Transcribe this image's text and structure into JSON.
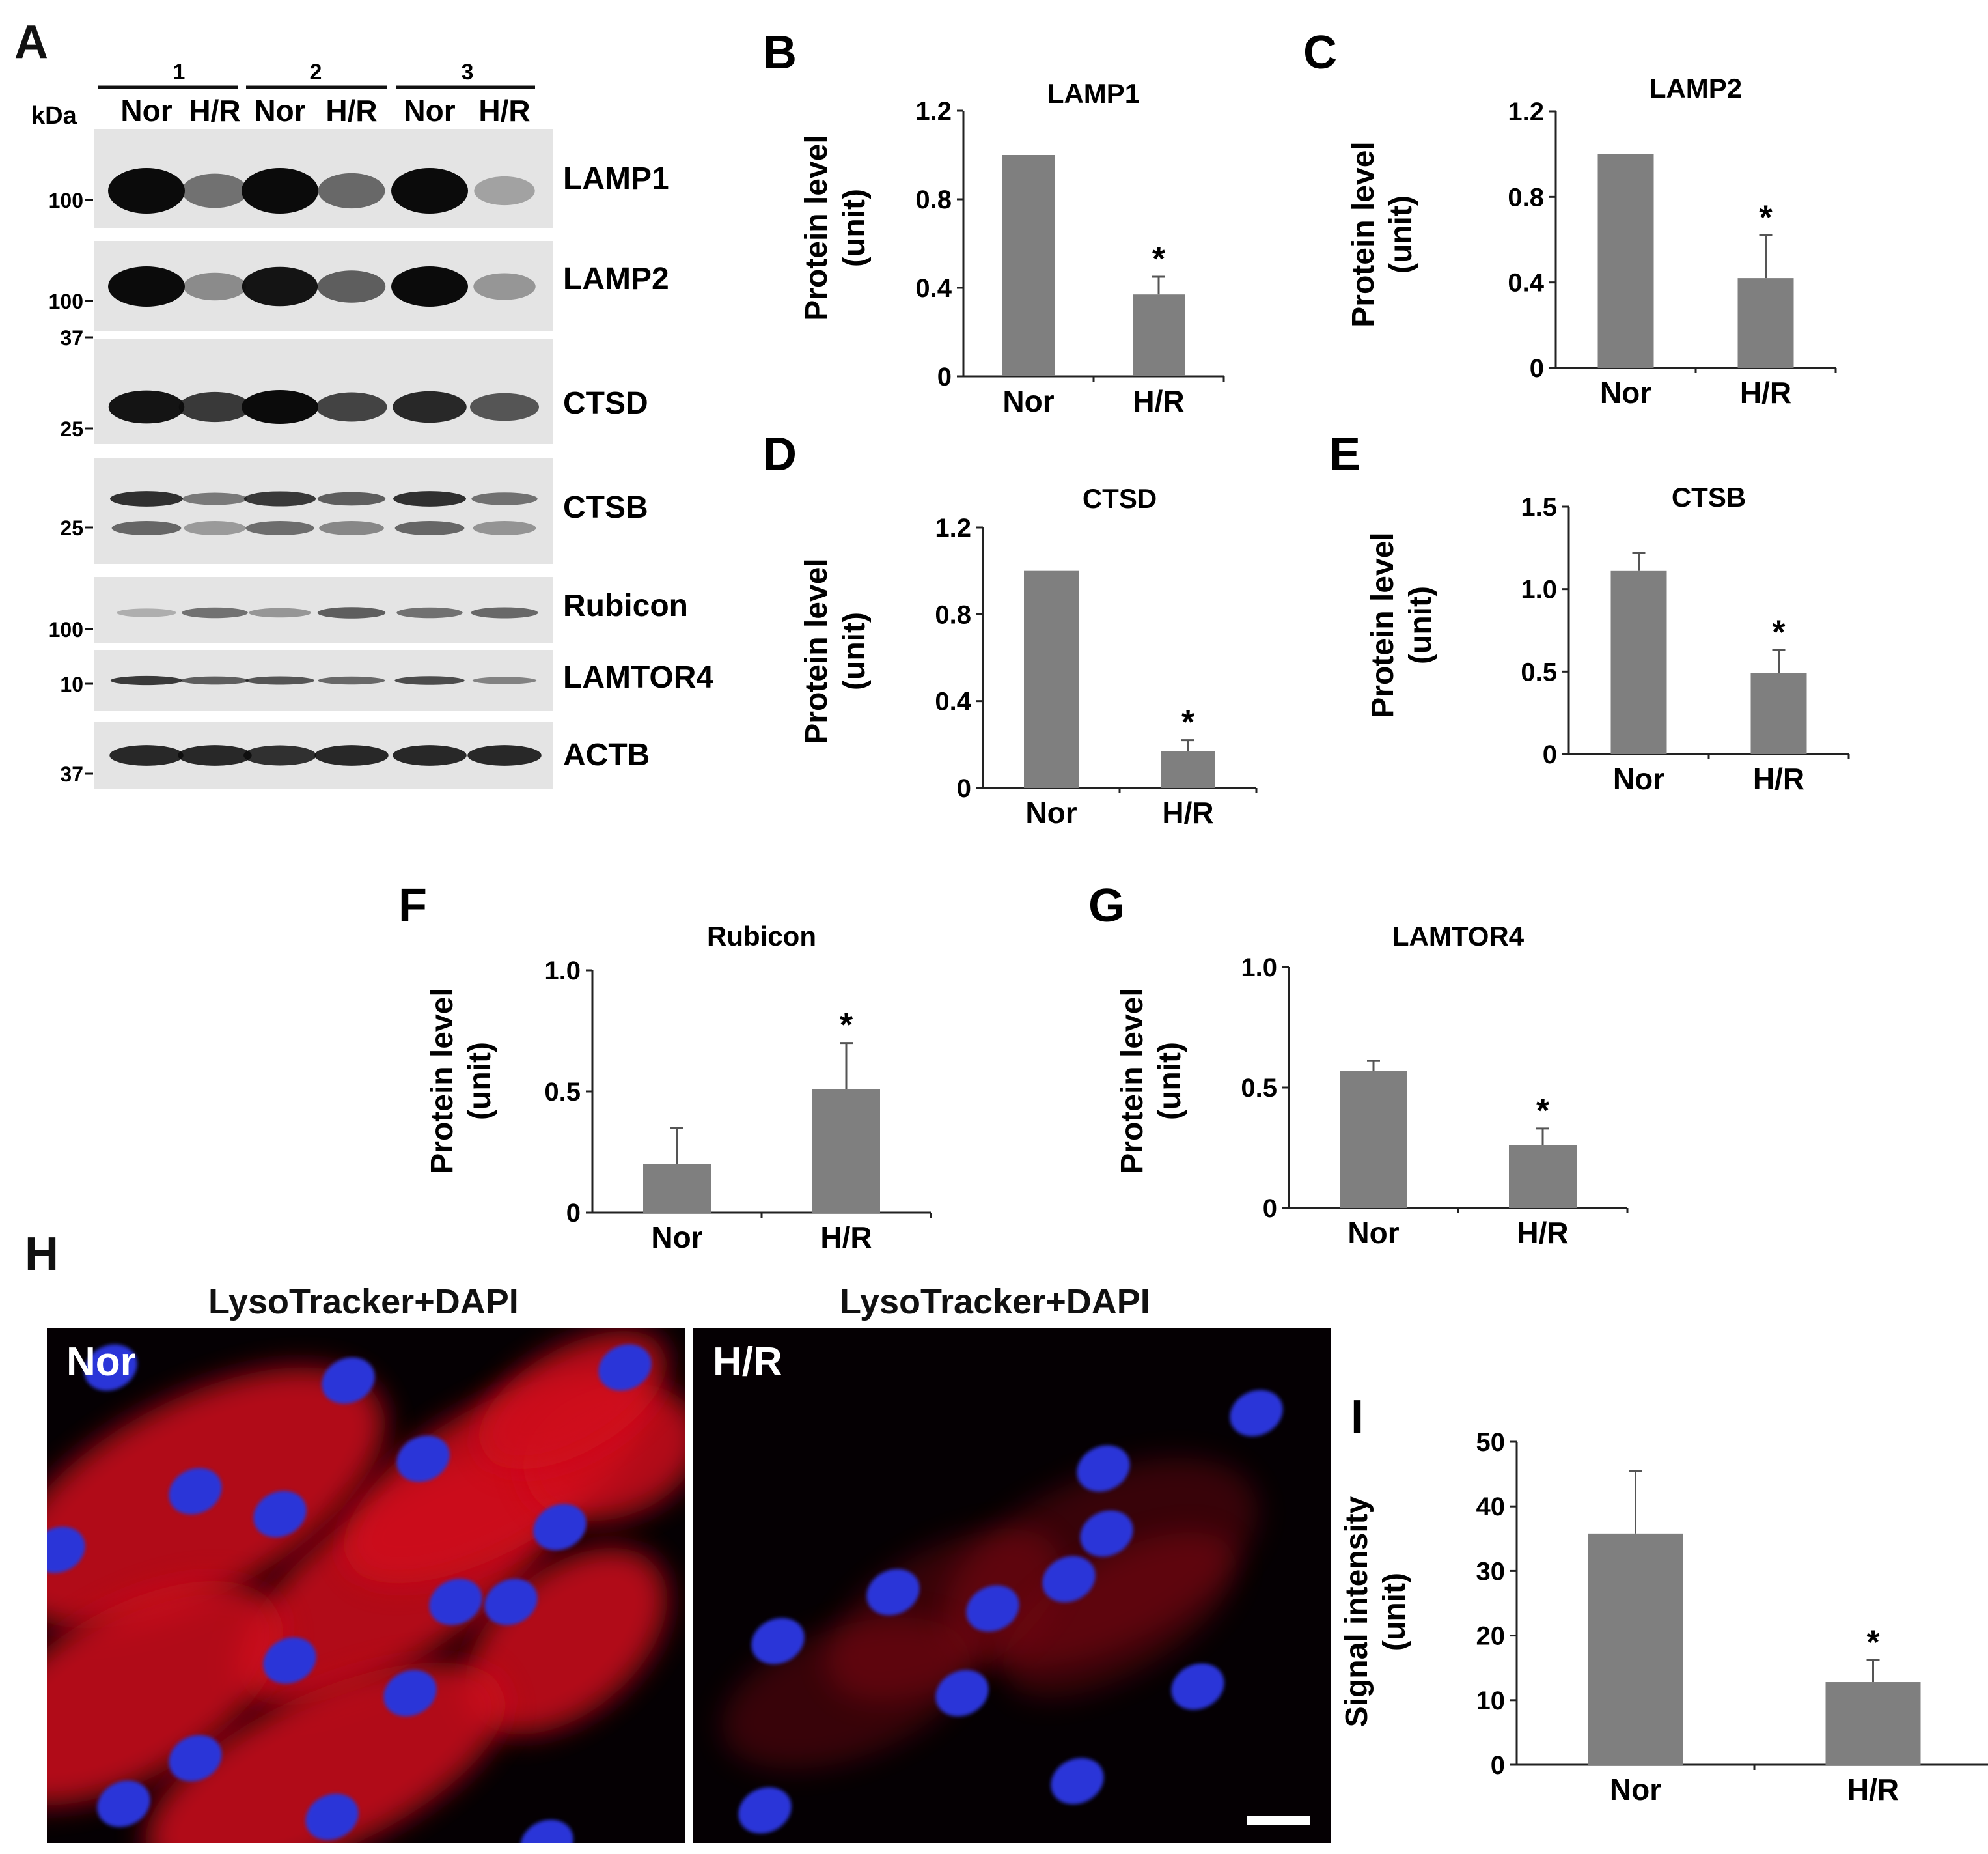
{
  "western_blot": {
    "panel": "A",
    "kda_label": "kDa",
    "group_labels": [
      "1",
      "2",
      "3"
    ],
    "lane_labels": [
      "Nor",
      "H/R",
      "Nor",
      "H/R",
      "Nor",
      "H/R"
    ],
    "rows": [
      {
        "protein": "LAMP1",
        "markers": [
          "100"
        ],
        "intensity": [
          1.0,
          0.45,
          1.0,
          0.5,
          1.0,
          0.18
        ]
      },
      {
        "protein": "LAMP2",
        "markers": [
          "100",
          "37"
        ],
        "intensity": [
          1.0,
          0.3,
          0.95,
          0.55,
          1.0,
          0.25
        ]
      },
      {
        "protein": "CTSD",
        "markers": [
          "25",
          "37"
        ],
        "intensity": [
          0.95,
          0.75,
          1.0,
          0.7,
          0.85,
          0.6
        ]
      },
      {
        "protein": "CTSB",
        "markers": [
          "25"
        ],
        "intensity": [
          0.8,
          0.4,
          0.75,
          0.55,
          0.8,
          0.45
        ]
      },
      {
        "protein": "Rubicon",
        "markers": [
          "100"
        ],
        "intensity": [
          0.12,
          0.45,
          0.25,
          0.55,
          0.45,
          0.5
        ]
      },
      {
        "protein": "LAMTOR4",
        "markers": [
          "10"
        ],
        "intensity": [
          0.75,
          0.55,
          0.6,
          0.5,
          0.65,
          0.35
        ]
      },
      {
        "protein": "ACTB",
        "markers": [
          "37"
        ],
        "intensity": [
          0.85,
          0.85,
          0.8,
          0.85,
          0.85,
          0.85
        ]
      }
    ]
  },
  "microscopy": {
    "panel": "H",
    "images": [
      {
        "title": "LysoTracker+DAPI",
        "condition": "Nor"
      },
      {
        "title": "LysoTracker+DAPI",
        "condition": "H/R"
      }
    ]
  },
  "chart_data": [
    {
      "panel": "B",
      "type": "bar",
      "title": "LAMP1",
      "ylabel": "Protein level (unit)",
      "categories": [
        "Nor",
        "H/R"
      ],
      "values": [
        1.0,
        0.37
      ],
      "errors": [
        0.005,
        0.08
      ],
      "significance": [
        "",
        "*"
      ],
      "ylim": [
        0,
        1.2
      ],
      "yticks": [
        "0",
        "0.4",
        "0.8",
        "1.2"
      ]
    },
    {
      "panel": "C",
      "type": "bar",
      "title": "LAMP2",
      "ylabel": "Protein level (unit)",
      "categories": [
        "Nor",
        "H/R"
      ],
      "values": [
        1.0,
        0.42
      ],
      "errors": [
        0.005,
        0.2
      ],
      "significance": [
        "",
        "*"
      ],
      "ylim": [
        0,
        1.2
      ],
      "yticks": [
        "0",
        "0.4",
        "0.8",
        "1.2"
      ]
    },
    {
      "panel": "D",
      "type": "bar",
      "title": "CTSD",
      "ylabel": "Protein level (unit)",
      "categories": [
        "Nor",
        "H/R"
      ],
      "values": [
        1.0,
        0.17
      ],
      "errors": [
        0.005,
        0.05
      ],
      "significance": [
        "",
        "*"
      ],
      "ylim": [
        0,
        1.2
      ],
      "yticks": [
        "0",
        "0.4",
        "0.8",
        "1.2"
      ]
    },
    {
      "panel": "E",
      "type": "bar",
      "title": "CTSB",
      "ylabel": "Protein level (unit)",
      "categories": [
        "Nor",
        "H/R"
      ],
      "values": [
        1.11,
        0.49
      ],
      "errors": [
        0.11,
        0.14
      ],
      "significance": [
        "",
        "*"
      ],
      "ylim": [
        0,
        1.5
      ],
      "yticks": [
        "0",
        "0.5",
        "1.0",
        "1.5"
      ]
    },
    {
      "panel": "F",
      "type": "bar",
      "title": "Rubicon",
      "ylabel": "Protein level (unit)",
      "categories": [
        "Nor",
        "H/R"
      ],
      "values": [
        0.2,
        0.51
      ],
      "errors": [
        0.15,
        0.19
      ],
      "significance": [
        "",
        "*"
      ],
      "ylim": [
        0,
        1.0
      ],
      "yticks": [
        "0",
        "0.5",
        "1.0"
      ]
    },
    {
      "panel": "G",
      "type": "bar",
      "title": "LAMTOR4",
      "ylabel": "Protein level (unit)",
      "categories": [
        "Nor",
        "H/R"
      ],
      "values": [
        0.57,
        0.26
      ],
      "errors": [
        0.04,
        0.07
      ],
      "significance": [
        "",
        "*"
      ],
      "ylim": [
        0,
        1.0
      ],
      "yticks": [
        "0",
        "0.5",
        "1.0"
      ]
    },
    {
      "panel": "I",
      "type": "bar",
      "title": "",
      "ylabel": "Signal intensity (unit)",
      "categories": [
        "Nor",
        "H/R"
      ],
      "values": [
        35.8,
        12.8
      ],
      "errors": [
        9.7,
        3.4
      ],
      "significance": [
        "",
        "*"
      ],
      "ylim": [
        0,
        50
      ],
      "yticks": [
        "0",
        "10",
        "20",
        "30",
        "40",
        "50"
      ]
    }
  ],
  "colors": {
    "bar": "#7f7f7f",
    "axis": "#222222",
    "blot_bg": "#e4e4e4",
    "band": "#0b0b0b",
    "micro_bg": "#050003",
    "lyso": "#d0101c",
    "dapi": "#2a35d8",
    "scalebar": "#ffffff"
  }
}
